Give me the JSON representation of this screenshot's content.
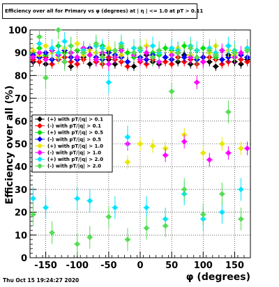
{
  "header": {
    "title": "Efficiency over all for Primary vs φ (degrees) at | η | <= 1.0 at pT > 0.11"
  },
  "footer": {
    "timestamp": "Thu Oct 15 19:24:27 2020"
  },
  "chart_data": {
    "type": "scatter",
    "title": "Efficiency over all for Primary vs φ (degrees) at | η | <= 1.0 at pT > 0.11",
    "xlabel": "φ (degrees)",
    "ylabel": "Efficiency over all (%)",
    "xlim": [
      -175,
      175
    ],
    "ylim": [
      0,
      100
    ],
    "x_ticks": [
      -150,
      -100,
      -50,
      0,
      50,
      100,
      150
    ],
    "y_ticks": [
      0,
      10,
      20,
      30,
      40,
      50,
      60,
      70,
      80,
      90,
      100
    ],
    "grid": true,
    "legend_position": "center-left",
    "series": [
      {
        "name": "(+) with pT/|q| > 0.1",
        "color": "#000000",
        "x": [
          -170,
          -160,
          -150,
          -140,
          -130,
          -120,
          -110,
          -100,
          -90,
          -80,
          -70,
          -60,
          -50,
          -40,
          -30,
          -20,
          -10,
          0,
          10,
          20,
          30,
          40,
          50,
          60,
          70,
          80,
          90,
          100,
          110,
          120,
          130,
          140,
          150,
          160,
          170
        ],
        "y": [
          86,
          88,
          85,
          87,
          89,
          86,
          84,
          87,
          88,
          85,
          86,
          89,
          87,
          85,
          88,
          86,
          84,
          87,
          89,
          86,
          85,
          88,
          87,
          86,
          89,
          85,
          87,
          88,
          86,
          84,
          87,
          89,
          86,
          85,
          87
        ],
        "err": [
          2,
          2,
          2,
          2,
          2,
          2,
          2,
          2,
          2,
          2,
          2,
          2,
          2,
          2,
          2,
          2,
          2,
          2,
          2,
          2,
          2,
          2,
          2,
          2,
          2,
          2,
          2,
          2,
          2,
          2,
          2,
          2,
          2,
          2,
          2
        ]
      },
      {
        "name": "(-) with pT/|q| > 0.1",
        "color": "#ff0000",
        "x": [
          -170,
          -160,
          -150,
          -140,
          -130,
          -120,
          -110,
          -100,
          -90,
          -80,
          -70,
          -60,
          -50,
          -40,
          -30,
          -20,
          -10,
          0,
          10,
          20,
          30,
          40,
          50,
          60,
          70,
          80,
          90,
          100,
          110,
          120,
          130,
          140,
          150,
          160,
          170
        ],
        "y": [
          87,
          86,
          88,
          85,
          87,
          88,
          86,
          85,
          87,
          89,
          86,
          85,
          88,
          87,
          86,
          84,
          88,
          86,
          85,
          87,
          89,
          86,
          85,
          88,
          86,
          87,
          85,
          86,
          88,
          87,
          85,
          86,
          88,
          87,
          86
        ],
        "err": [
          2,
          2,
          2,
          2,
          2,
          2,
          2,
          2,
          2,
          2,
          2,
          2,
          2,
          2,
          2,
          2,
          2,
          2,
          2,
          2,
          2,
          2,
          2,
          2,
          2,
          2,
          2,
          2,
          2,
          2,
          2,
          2,
          2,
          2,
          2
        ]
      },
      {
        "name": "(+) with pT/|q| > 0.5",
        "color": "#00e000",
        "x": [
          -170,
          -160,
          -150,
          -140,
          -130,
          -120,
          -110,
          -100,
          -90,
          -80,
          -70,
          -60,
          -50,
          -40,
          -30,
          -20,
          -10,
          0,
          10,
          20,
          30,
          40,
          50,
          60,
          70,
          80,
          90,
          100,
          110,
          120,
          130,
          140,
          150,
          160,
          170
        ],
        "y": [
          90,
          92,
          89,
          91,
          93,
          90,
          88,
          91,
          92,
          89,
          90,
          93,
          91,
          89,
          92,
          90,
          88,
          91,
          93,
          90,
          89,
          92,
          91,
          90,
          93,
          89,
          91,
          92,
          90,
          88,
          91,
          93,
          90,
          89,
          91
        ],
        "err": [
          2,
          2,
          2,
          2,
          2,
          2,
          2,
          2,
          2,
          2,
          2,
          2,
          2,
          2,
          2,
          2,
          2,
          2,
          2,
          2,
          2,
          2,
          2,
          2,
          2,
          2,
          2,
          2,
          2,
          2,
          2,
          2,
          2,
          2,
          2
        ]
      },
      {
        "name": "(-) with pT/|q| > 0.5",
        "color": "#0000ff",
        "x": [
          -170,
          -160,
          -150,
          -140,
          -130,
          -120,
          -110,
          -100,
          -90,
          -80,
          -70,
          -60,
          -50,
          -40,
          -30,
          -20,
          -10,
          0,
          10,
          20,
          30,
          40,
          50,
          60,
          70,
          80,
          90,
          100,
          110,
          120,
          130,
          140,
          150,
          160,
          170
        ],
        "y": [
          89,
          88,
          90,
          87,
          89,
          91,
          88,
          87,
          90,
          92,
          88,
          87,
          90,
          89,
          88,
          86,
          90,
          88,
          87,
          89,
          91,
          88,
          87,
          90,
          88,
          89,
          87,
          88,
          90,
          89,
          87,
          88,
          90,
          89,
          88
        ],
        "err": [
          2,
          2,
          2,
          2,
          2,
          2,
          2,
          2,
          2,
          2,
          2,
          2,
          2,
          2,
          2,
          2,
          2,
          2,
          2,
          2,
          2,
          2,
          2,
          2,
          2,
          2,
          2,
          2,
          2,
          2,
          2,
          2,
          2,
          2,
          2
        ]
      },
      {
        "name": "(+) with pT/|q| > 1.0",
        "color": "#e8e800",
        "x": [
          -170,
          -160,
          -150,
          -140,
          -130,
          -120,
          -110,
          -100,
          -90,
          -80,
          -70,
          -60,
          -50,
          -40,
          -30,
          -20,
          -10,
          0,
          10,
          20,
          30,
          40,
          50,
          60,
          70,
          80,
          90,
          100,
          110,
          120,
          130,
          140,
          150,
          160,
          170
        ],
        "y": [
          91,
          89,
          93,
          90,
          88,
          92,
          90,
          94,
          89,
          91,
          90,
          88,
          92,
          91,
          89,
          42,
          90,
          50,
          93,
          49,
          91,
          48,
          90,
          92,
          54,
          89,
          91,
          46,
          90,
          93,
          50,
          91,
          89,
          48,
          92
        ],
        "err": [
          3,
          3,
          3,
          3,
          3,
          3,
          3,
          3,
          3,
          3,
          3,
          3,
          3,
          3,
          3,
          3,
          3,
          3,
          3,
          3,
          3,
          3,
          3,
          3,
          3,
          3,
          3,
          3,
          3,
          3,
          3,
          3,
          3,
          3,
          3
        ]
      },
      {
        "name": "(-) with pT/|q| > 1.0",
        "color": "#ff00ff",
        "x": [
          -170,
          -160,
          -150,
          -140,
          -130,
          -120,
          -110,
          -100,
          -90,
          -80,
          -70,
          -60,
          -50,
          -40,
          -30,
          -20,
          -10,
          0,
          10,
          20,
          30,
          40,
          50,
          60,
          70,
          80,
          90,
          100,
          110,
          120,
          130,
          140,
          150,
          160,
          170
        ],
        "y": [
          88,
          90,
          87,
          91,
          89,
          86,
          90,
          88,
          92,
          89,
          87,
          90,
          85,
          88,
          91,
          50,
          89,
          87,
          90,
          88,
          86,
          45,
          89,
          91,
          51,
          88,
          77,
          86,
          43,
          89,
          91,
          46,
          88,
          90,
          48
        ],
        "err": [
          3,
          3,
          3,
          3,
          3,
          3,
          3,
          3,
          3,
          3,
          3,
          3,
          3,
          3,
          3,
          3,
          3,
          3,
          3,
          3,
          3,
          3,
          3,
          3,
          3,
          3,
          3,
          3,
          3,
          3,
          3,
          3,
          3,
          3,
          3
        ]
      },
      {
        "name": "(+) with pT/|q| > 2.0",
        "color": "#00e5ff",
        "x": [
          -170,
          -160,
          -150,
          -140,
          -130,
          -120,
          -110,
          -100,
          -90,
          -80,
          -70,
          -60,
          -50,
          -40,
          -30,
          -20,
          -10,
          0,
          10,
          20,
          30,
          40,
          50,
          60,
          70,
          80,
          90,
          100,
          110,
          120,
          130,
          140,
          150,
          160,
          170
        ],
        "y": [
          26,
          94,
          22,
          92,
          90,
          95,
          93,
          26,
          91,
          25,
          93,
          92,
          77,
          22,
          94,
          53,
          92,
          91,
          22,
          93,
          90,
          17,
          92,
          91,
          28,
          93,
          91,
          17,
          92,
          90,
          20,
          93,
          91,
          30,
          92
        ],
        "err": [
          5,
          4,
          5,
          4,
          4,
          4,
          4,
          5,
          4,
          5,
          4,
          4,
          5,
          5,
          4,
          5,
          4,
          4,
          5,
          4,
          4,
          5,
          4,
          4,
          5,
          4,
          4,
          5,
          4,
          4,
          5,
          4,
          4,
          5,
          4
        ]
      },
      {
        "name": "(-) with pT/|q| > 2.0",
        "color": "#55dd55",
        "x": [
          -170,
          -160,
          -150,
          -140,
          -130,
          -120,
          -110,
          -100,
          -90,
          -80,
          -70,
          -60,
          -50,
          -40,
          -30,
          -20,
          -10,
          0,
          10,
          20,
          30,
          40,
          50,
          60,
          70,
          80,
          90,
          100,
          110,
          120,
          130,
          140,
          150,
          160,
          170
        ],
        "y": [
          19,
          97,
          79,
          11,
          100,
          86,
          93,
          6,
          90,
          9,
          94,
          88,
          18,
          91,
          93,
          8,
          90,
          92,
          13,
          88,
          91,
          14,
          73,
          90,
          30,
          92,
          88,
          19,
          91,
          89,
          28,
          64,
          90,
          17,
          91
        ],
        "err": [
          5,
          4,
          5,
          5,
          4,
          4,
          4,
          5,
          4,
          5,
          4,
          4,
          5,
          4,
          4,
          5,
          4,
          4,
          5,
          4,
          4,
          5,
          4,
          4,
          5,
          4,
          4,
          5,
          4,
          4,
          5,
          5,
          4,
          5,
          4
        ]
      }
    ]
  }
}
